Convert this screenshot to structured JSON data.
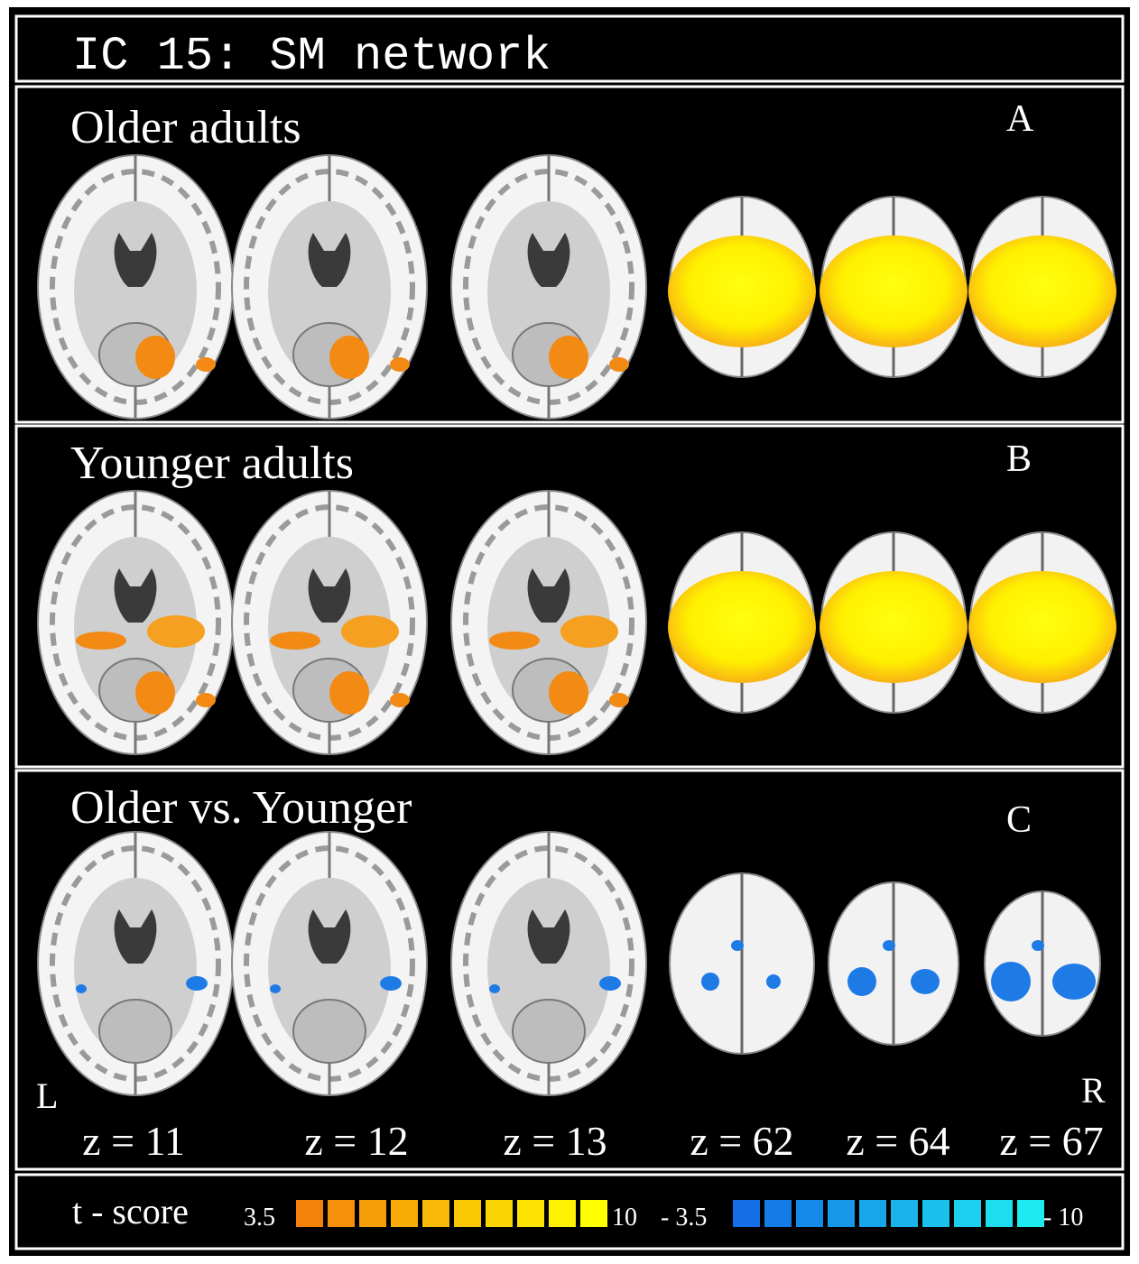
{
  "header": {
    "title": "IC 15: SM network"
  },
  "panels": [
    {
      "title": "Older adults",
      "letter": "A"
    },
    {
      "title": "Younger adults",
      "letter": "B"
    },
    {
      "title": "Older vs. Younger",
      "letter": "C"
    }
  ],
  "orientation": {
    "left": "L",
    "right": "R"
  },
  "slices": [
    "z = 11",
    "z = 12",
    "z = 13",
    "z = 62",
    "z = 64",
    "z = 67"
  ],
  "colorbar": {
    "label": "t - score",
    "positive_min": "3.5",
    "positive_max": "10",
    "negative_min": "- 3.5",
    "negative_max": "- 10"
  }
}
